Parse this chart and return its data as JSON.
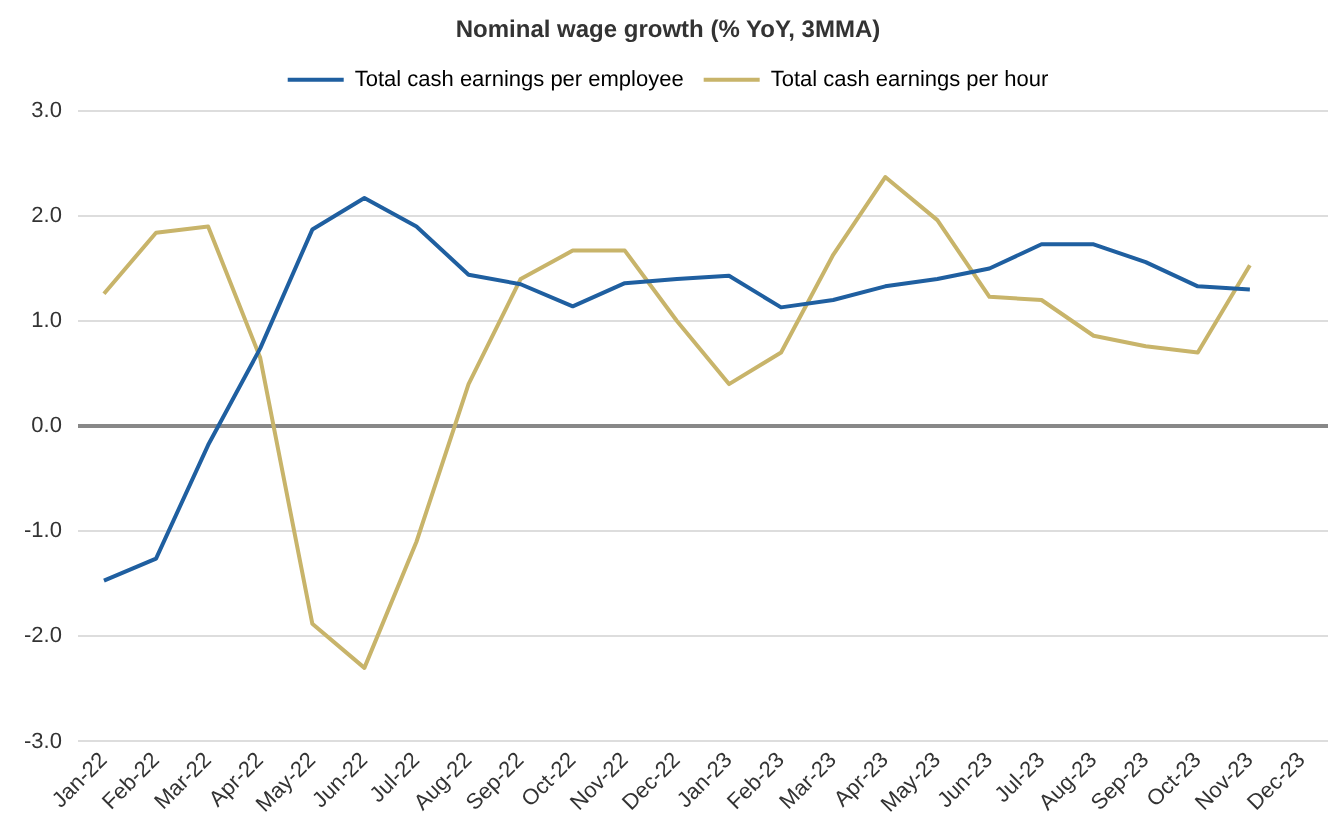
{
  "chart_data": {
    "type": "line",
    "title": "Nominal wage growth (% YoY, 3MMA)",
    "categories": [
      "Jan-22",
      "Feb-22",
      "Mar-22",
      "Apr-22",
      "May-22",
      "Jun-22",
      "Jul-22",
      "Aug-22",
      "Sep-22",
      "Oct-22",
      "Nov-22",
      "Dec-22",
      "Jan-23",
      "Feb-23",
      "Mar-23",
      "Apr-23",
      "May-23",
      "Jun-23",
      "Jul-23",
      "Aug-23",
      "Sep-23",
      "Oct-23",
      "Nov-23",
      "Dec-23"
    ],
    "series": [
      {
        "name": "Total cash earnings per employee",
        "color": "#1f5fa0",
        "values": [
          -1.47,
          -1.26,
          -0.18,
          0.74,
          1.87,
          2.17,
          1.9,
          1.44,
          1.35,
          1.14,
          1.36,
          1.4,
          1.43,
          1.13,
          1.2,
          1.33,
          1.4,
          1.5,
          1.73,
          1.73,
          1.56,
          1.33,
          1.3,
          null
        ]
      },
      {
        "name": "Total cash earnings per hour",
        "color": "#c8b46a",
        "values": [
          1.26,
          1.84,
          1.9,
          0.65,
          -1.88,
          -2.3,
          -1.1,
          0.4,
          1.4,
          1.67,
          1.67,
          1.0,
          0.4,
          0.7,
          1.63,
          2.37,
          1.96,
          1.23,
          1.2,
          0.86,
          0.76,
          0.7,
          1.53,
          null
        ]
      }
    ],
    "ylim": [
      -3,
      3
    ],
    "yticks": [
      {
        "value": -3,
        "label": "-3.0"
      },
      {
        "value": -2,
        "label": "-2.0"
      },
      {
        "value": -1,
        "label": "-1.0"
      },
      {
        "value": 0,
        "label": "0.0"
      },
      {
        "value": 1,
        "label": "1.0"
      },
      {
        "value": 2,
        "label": "2.0"
      },
      {
        "value": 3,
        "label": "3.0"
      }
    ],
    "grid": "y",
    "legend": "top",
    "marker": "none",
    "line_style": "solid"
  }
}
